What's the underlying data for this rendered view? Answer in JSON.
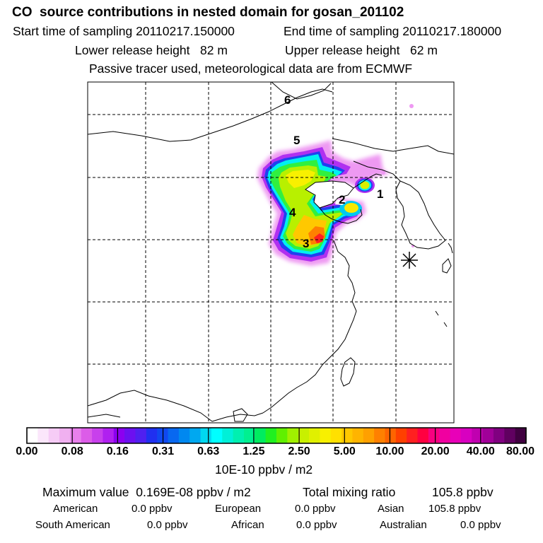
{
  "header": {
    "title": "CO  source contributions in nested domain for gosan_201102",
    "start_label": "Start time of sampling 20110217.150000",
    "end_label": "End time of sampling 20110217.180000",
    "lower_label": "Lower release height   82 m",
    "upper_label": "Upper release height   62 m",
    "note": "Passive tracer used, meteorological data are from ECMWF"
  },
  "map": {
    "region_labels": [
      "1",
      "2",
      "3",
      "4",
      "5",
      "6"
    ],
    "receptor_marker": "asterisk-icon"
  },
  "colorbar": {
    "tick_labels": [
      "0.00",
      "0.08",
      "0.16",
      "0.31",
      "0.63",
      "1.25",
      "2.50",
      "5.00",
      "10.00",
      "20.00",
      "40.00",
      "80.00"
    ],
    "unit": "10E-10 ppbv / m2",
    "colors": [
      "#ffffff",
      "#fbe6fb",
      "#f6ccf6",
      "#f0b0f0",
      "#e880ec",
      "#dc5ce8",
      "#c840ec",
      "#b020f0",
      "#8c00f0",
      "#6c10f0",
      "#5020f0",
      "#2030f0",
      "#1048f0",
      "#0868f0",
      "#0088f0",
      "#00a8f0",
      "#00d8f0",
      "#00ffff",
      "#00f0d8",
      "#00f0b0",
      "#00f090",
      "#00ec60",
      "#20f020",
      "#60f000",
      "#a0f000",
      "#c8f000",
      "#e0f000",
      "#f8f000",
      "#ffe000",
      "#ffc800",
      "#ffb400",
      "#ffa000",
      "#ff8000",
      "#ff6400",
      "#ff4000",
      "#ff2020",
      "#ff0040",
      "#f80080",
      "#f000a0",
      "#e800b8",
      "#d800c0",
      "#c000b0",
      "#a00098",
      "#800080",
      "#600060",
      "#400040"
    ]
  },
  "stats": {
    "max_label": "Maximum value  0.169E-08 ppbv / m2",
    "total_label": "Total mixing ratio",
    "total_value": "105.8 ppbv",
    "american_label": "American",
    "american_value": "0.0 ppbv",
    "european_label": "European",
    "european_value": "0.0 ppbv",
    "asian_label": "Asian",
    "asian_value": "105.8 ppbv",
    "south_american_label": "South American",
    "south_american_value": "0.0 ppbv",
    "african_label": "African",
    "african_value": "0.0 ppbv",
    "australian_label": "Australian",
    "australian_value": "0.0 ppbv"
  }
}
